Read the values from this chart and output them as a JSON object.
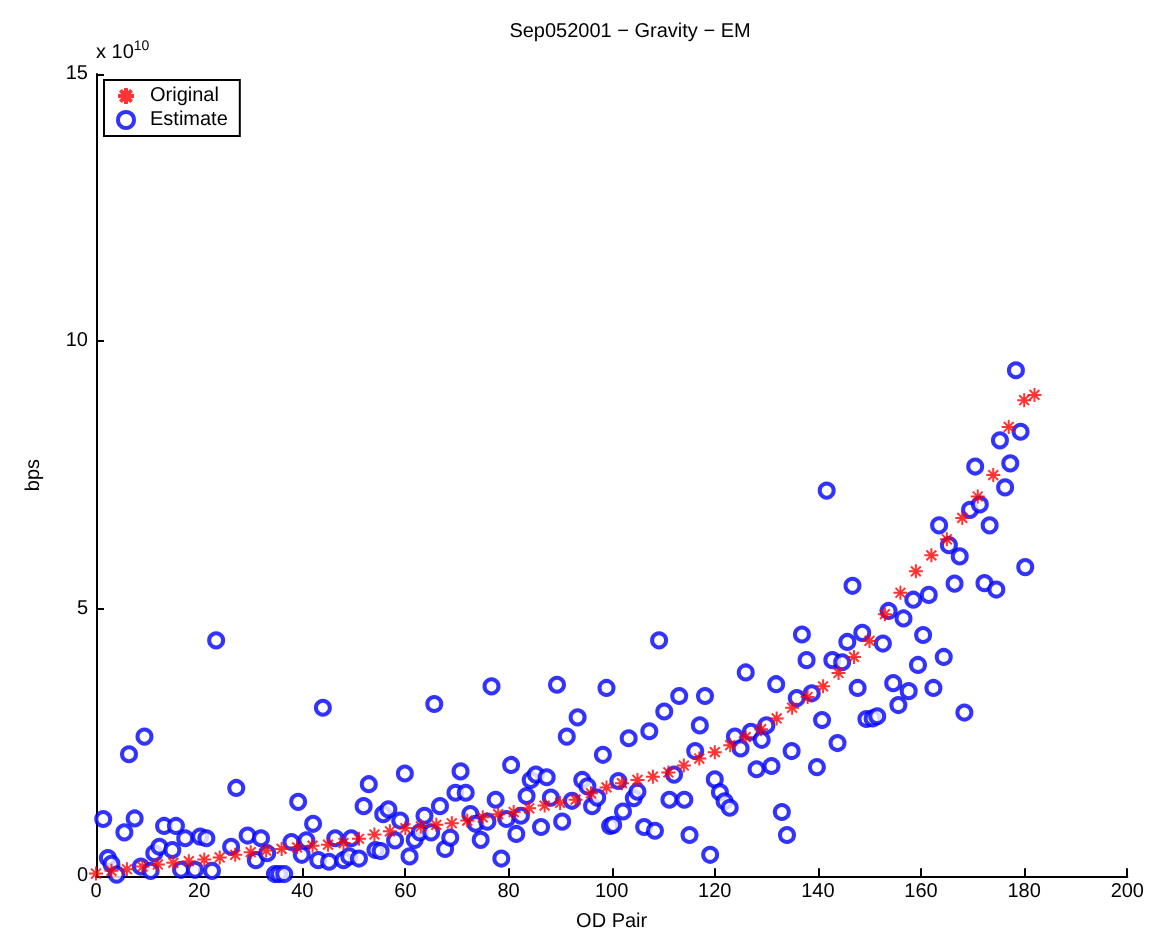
{
  "chart_data": {
    "type": "scatter",
    "title": "Sep052001 − Gravity − EM",
    "xlabel": "OD Pair",
    "ylabel": "bps",
    "annotations": [
      "x 10$^{10}$"
    ],
    "xlim": [
      0,
      200
    ],
    "xticks": [
      0,
      20,
      40,
      60,
      80,
      100,
      120,
      140,
      160,
      180,
      200
    ],
    "ylim": [
      0,
      15
    ],
    "yticks": [
      0,
      5,
      10,
      15
    ],
    "grid": false,
    "legend": "top left",
    "series": [
      {
        "name": "Original",
        "color": "#ff0000",
        "marker": "cross",
        "x": [
          0,
          3,
          6,
          9,
          12,
          15,
          18,
          21,
          24,
          27,
          30,
          33,
          36,
          39,
          42,
          45,
          48,
          51,
          54,
          57,
          60,
          63,
          66,
          69,
          72,
          75,
          78,
          81,
          84,
          87,
          90,
          93,
          96,
          99,
          102,
          105,
          108,
          111,
          114,
          117,
          120,
          123,
          126,
          129,
          132,
          135,
          138,
          141,
          144,
          147,
          150,
          153,
          156,
          159,
          162,
          165,
          168,
          171,
          174,
          177,
          180,
          182
        ],
        "values": [
          0.05,
          0.1,
          0.13,
          0.18,
          0.22,
          0.25,
          0.28,
          0.31,
          0.35,
          0.4,
          0.45,
          0.48,
          0.51,
          0.54,
          0.57,
          0.59,
          0.62,
          0.7,
          0.78,
          0.84,
          0.9,
          0.93,
          0.96,
          0.99,
          1.04,
          1.1,
          1.16,
          1.2,
          1.27,
          1.32,
          1.37,
          1.43,
          1.55,
          1.66,
          1.74,
          1.8,
          1.86,
          1.94,
          2.07,
          2.2,
          2.32,
          2.45,
          2.6,
          2.75,
          2.95,
          3.15,
          3.35,
          3.55,
          3.8,
          4.1,
          4.4,
          4.9,
          5.3,
          5.7,
          6.0,
          6.3,
          6.7,
          7.1,
          7.5,
          8.4,
          8.9,
          9.0
        ]
      },
      {
        "name": "Estimate",
        "color": "#0000ff",
        "marker": "circle",
        "x": [
          1.4,
          2.3,
          3,
          4,
          5.5,
          6.4,
          7.5,
          9.4,
          8.7,
          10.6,
          11.3,
          12.3,
          13.2,
          15.5,
          14.8,
          17.3,
          16.5,
          19.2,
          20.2,
          21.4,
          23.3,
          22.5,
          26.2,
          27.2,
          29.4,
          31,
          32,
          33.2,
          34.7,
          35.5,
          36.5,
          37.9,
          39.2,
          39.9,
          40.8,
          42.1,
          44,
          43.1,
          45.2,
          46.4,
          48,
          49.5,
          49.1,
          51,
          51.9,
          52.9,
          54.2,
          55.2,
          55.7,
          56.7,
          58,
          59,
          59.9,
          60.8,
          61.8,
          62.8,
          63.7,
          65,
          65.6,
          66.7,
          67.7,
          68.7,
          69.7,
          70.7,
          71.7,
          72.6,
          73.6,
          74.6,
          75.9,
          76.7,
          77.5,
          78.6,
          79.6,
          80.5,
          81.5,
          82.4,
          83.5,
          84.3,
          85.3,
          86.3,
          87.4,
          88.2,
          89.4,
          90.4,
          92.3,
          93.4,
          91.3,
          94.3,
          95.3,
          96.2,
          97.2,
          98.3,
          99,
          99.7,
          100.3,
          101.3,
          102.2,
          103.3,
          104.3,
          105,
          106.3,
          107.3,
          108.4,
          109.2,
          110.2,
          111.2,
          112.1,
          113.1,
          114.1,
          115.1,
          116.2,
          117.1,
          118.1,
          119.1,
          120,
          121,
          121.9,
          122.9,
          123.9,
          125,
          126,
          127,
          128.1,
          129.1,
          130,
          131,
          131.9,
          133,
          134,
          134.9,
          135.9,
          136.9,
          137.8,
          138.8,
          139.8,
          140.8,
          141.7,
          142.8,
          143.8,
          144.7,
          145.7,
          146.7,
          147.7,
          148.6,
          149.4,
          150.6,
          151.5,
          152.6,
          153.7,
          154.6,
          155.6,
          156.6,
          157.6,
          158.5,
          159.4,
          160.4,
          161.5,
          162.4,
          163.5,
          164.4,
          165.4,
          166.5,
          167.5,
          168.4,
          169.5,
          170.5,
          171.4,
          172.3,
          173.3,
          174.6,
          175.3,
          176.3,
          177.3,
          178.4,
          179.3,
          180.2
        ],
        "values": [
          1.07,
          0.34,
          0.23,
          0.03,
          0.82,
          2.28,
          1.08,
          2.61,
          0.18,
          0.1,
          0.43,
          0.55,
          0.94,
          0.94,
          0.49,
          0.71,
          0.12,
          0.12,
          0.74,
          0.71,
          4.41,
          0.1,
          0.55,
          1.65,
          0.76,
          0.3,
          0.71,
          0.43,
          0.04,
          0.04,
          0.04,
          0.64,
          1.39,
          0.4,
          0.67,
          0.98,
          3.15,
          0.3,
          0.27,
          0.71,
          0.3,
          0.71,
          0.37,
          0.33,
          1.31,
          1.72,
          0.49,
          0.47,
          1.16,
          1.25,
          0.67,
          1.04,
          1.92,
          0.37,
          0.68,
          0.82,
          1.13,
          0.82,
          3.22,
          1.31,
          0.51,
          0.72,
          1.56,
          1.96,
          1.56,
          1.16,
          0.98,
          0.68,
          1.02,
          3.55,
          1.43,
          0.33,
          1.07,
          2.08,
          0.79,
          1.13,
          1.5,
          1.8,
          1.9,
          0.92,
          1.85,
          1.47,
          3.58,
          1.02,
          1.41,
          2.97,
          2.61,
          1.8,
          1.68,
          1.31,
          1.47,
          2.27,
          3.52,
          0.94,
          0.96,
          1.78,
          1.21,
          2.58,
          1.46,
          1.58,
          0.92,
          2.71,
          0.85,
          4.41,
          3.08,
          1.43,
          1.9,
          3.37,
          1.43,
          0.77,
          2.34,
          2.82,
          3.37,
          0.4,
          1.81,
          1.57,
          1.4,
          1.28,
          2.61,
          2.39,
          3.81,
          2.7,
          2.0,
          2.55,
          2.82,
          2.06,
          3.59,
          1.2,
          0.77,
          2.34,
          3.33,
          4.52,
          4.04,
          3.42,
          2.04,
          2.92,
          7.21,
          4.04,
          2.49,
          4.0,
          4.38,
          5.43,
          3.52,
          4.55,
          2.94,
          2.95,
          2.99,
          4.35,
          4.96,
          3.61,
          3.2,
          4.82,
          3.46,
          5.17,
          3.95,
          4.51,
          5.26,
          3.52,
          6.56,
          4.1,
          6.19,
          5.47,
          5.98,
          3.06,
          6.85,
          7.66,
          6.95,
          5.48,
          6.56,
          5.36,
          8.15,
          7.27,
          7.72,
          9.46,
          8.31,
          5.78
        ]
      }
    ]
  }
}
